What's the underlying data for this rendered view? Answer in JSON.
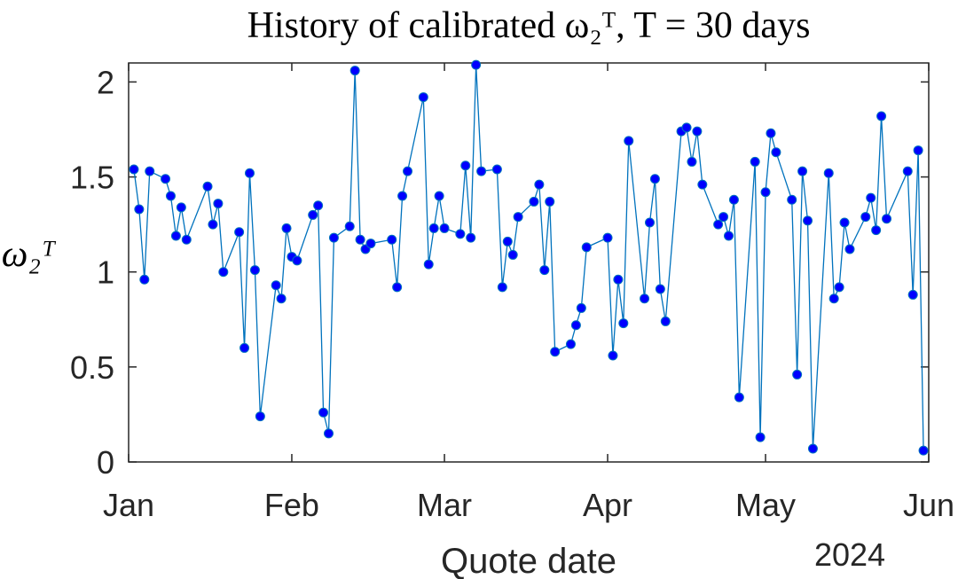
{
  "chart_data": {
    "type": "line",
    "title": "History of calibrated ω₂ᵀ, T = 30 days",
    "ylabel": "ω₂ᵀ",
    "xlabel": "Quote date",
    "x_axis_year": "2024",
    "x": [
      1,
      2,
      3,
      4,
      7,
      8,
      9,
      10,
      11,
      15,
      16,
      17,
      18,
      21,
      22,
      23,
      24,
      25,
      28,
      29,
      30,
      31,
      32,
      35,
      36,
      37,
      38,
      39,
      42,
      43,
      44,
      45,
      46,
      50,
      51,
      52,
      53,
      56,
      57,
      58,
      59,
      60,
      63,
      64,
      65,
      66,
      67,
      70,
      71,
      72,
      73,
      74,
      77,
      78,
      79,
      80,
      81,
      84,
      85,
      86,
      87,
      91,
      92,
      93,
      94,
      95,
      98,
      99,
      100,
      101,
      102,
      105,
      106,
      107,
      108,
      109,
      112,
      113,
      114,
      115,
      116,
      119,
      120,
      121,
      122,
      123,
      126,
      127,
      128,
      129,
      130,
      133,
      134,
      135,
      136,
      137,
      140,
      141,
      142,
      143,
      144,
      148,
      149,
      150,
      151
    ],
    "values": [
      1.54,
      1.33,
      0.96,
      1.53,
      1.49,
      1.4,
      1.19,
      1.34,
      1.17,
      1.45,
      1.25,
      1.36,
      1.0,
      1.21,
      0.6,
      1.52,
      1.01,
      0.24,
      0.93,
      0.86,
      1.23,
      1.08,
      1.06,
      1.3,
      1.35,
      0.26,
      0.15,
      1.18,
      1.24,
      2.06,
      1.17,
      1.12,
      1.15,
      1.17,
      0.92,
      1.4,
      1.53,
      1.92,
      1.04,
      1.23,
      1.4,
      1.23,
      1.2,
      1.56,
      1.18,
      2.09,
      1.53,
      1.54,
      0.92,
      1.16,
      1.09,
      1.29,
      1.37,
      1.46,
      1.01,
      1.37,
      0.58,
      0.62,
      0.72,
      0.81,
      1.13,
      1.18,
      0.56,
      0.96,
      0.73,
      1.69,
      0.86,
      1.26,
      1.49,
      0.91,
      0.74,
      1.74,
      1.76,
      1.58,
      1.74,
      1.46,
      1.25,
      1.29,
      1.19,
      1.38,
      0.34,
      1.58,
      0.13,
      1.42,
      1.73,
      1.63,
      1.38,
      0.46,
      1.53,
      1.27,
      0.07,
      1.52,
      0.86,
      0.92,
      1.26,
      1.12,
      1.29,
      1.39,
      1.22,
      1.82,
      1.28,
      1.53,
      0.88,
      1.64,
      0.06
    ],
    "color": "#0072bd",
    "marker_color": "#0000ff",
    "xlim": [
      0,
      152
    ],
    "xticks": [
      {
        "value": 0,
        "label": "Jan"
      },
      {
        "value": 31,
        "label": "Feb"
      },
      {
        "value": 60,
        "label": "Mar"
      },
      {
        "value": 91,
        "label": "Apr"
      },
      {
        "value": 121,
        "label": "May"
      },
      {
        "value": 152,
        "label": "Jun"
      }
    ],
    "ylim": [
      0,
      2.1
    ],
    "yticks": [
      0,
      0.5,
      1,
      1.5,
      2
    ],
    "grid": false
  }
}
